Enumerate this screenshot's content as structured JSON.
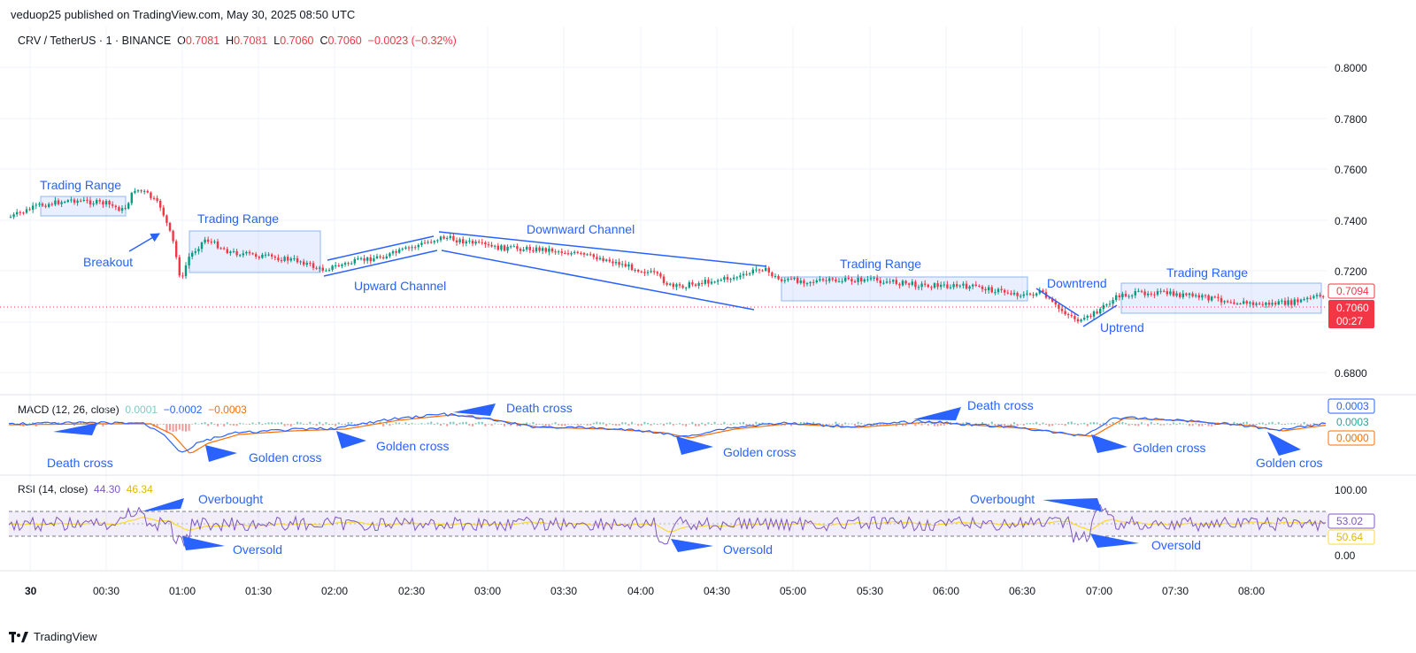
{
  "published": "veduop25 published on TradingView.com, May 30, 2025 08:50 UTC",
  "symbol": {
    "name": "CRV / TetherUS · 1 · BINANCE",
    "o_label": "O",
    "o": "0.7081",
    "h_label": "H",
    "h": "0.7081",
    "l_label": "L",
    "l": "0.7060",
    "c_label": "C",
    "c": "0.7060",
    "change": "−0.0023 (−0.32%)"
  },
  "price_axis": {
    "ticks": [
      "0.8000",
      "0.7800",
      "0.7600",
      "0.7400",
      "0.7200",
      "0.6800"
    ],
    "badge_high": "0.7094",
    "badge_price": "0.7060",
    "badge_timer": "00:27"
  },
  "time_axis": [
    "30",
    "00:30",
    "01:00",
    "01:30",
    "02:00",
    "02:30",
    "03:00",
    "03:30",
    "04:00",
    "04:30",
    "05:00",
    "05:30",
    "06:00",
    "06:30",
    "07:00",
    "07:30",
    "08:00"
  ],
  "macd": {
    "title": "MACD (12, 26, close)",
    "hist": "0.0001",
    "macd": "−0.0002",
    "signal": "−0.0003",
    "badge_1": "0.0003",
    "badge_2": "0.0003",
    "badge_3": "0.0000"
  },
  "rsi": {
    "title": "RSI (14, close)",
    "rsi": "44.30",
    "ma": "46.34",
    "tick_100": "100.00",
    "tick_0": "0.00",
    "badge_rsi": "53.02",
    "badge_ma": "50.64"
  },
  "annotations": {
    "trading_range": "Trading Range",
    "breakout": "Breakout",
    "upward_channel": "Upward Channel",
    "downward_channel": "Downward Channel",
    "downtrend": "Downtrend",
    "uptrend": "Uptrend",
    "death_cross": "Death cross",
    "golden_cross": "Golden cross",
    "golden_cros": "Golden cros",
    "overbought": "Overbought",
    "oversold": "Oversold"
  },
  "footer": "TradingView",
  "colors": {
    "up": "#089981",
    "down": "#f23645",
    "annotation": "#2962ff",
    "macd_line": "#2962ff",
    "signal_line": "#ff6d00",
    "rsi_line": "#7e57c2",
    "rsi_ma": "#fdd835"
  }
}
